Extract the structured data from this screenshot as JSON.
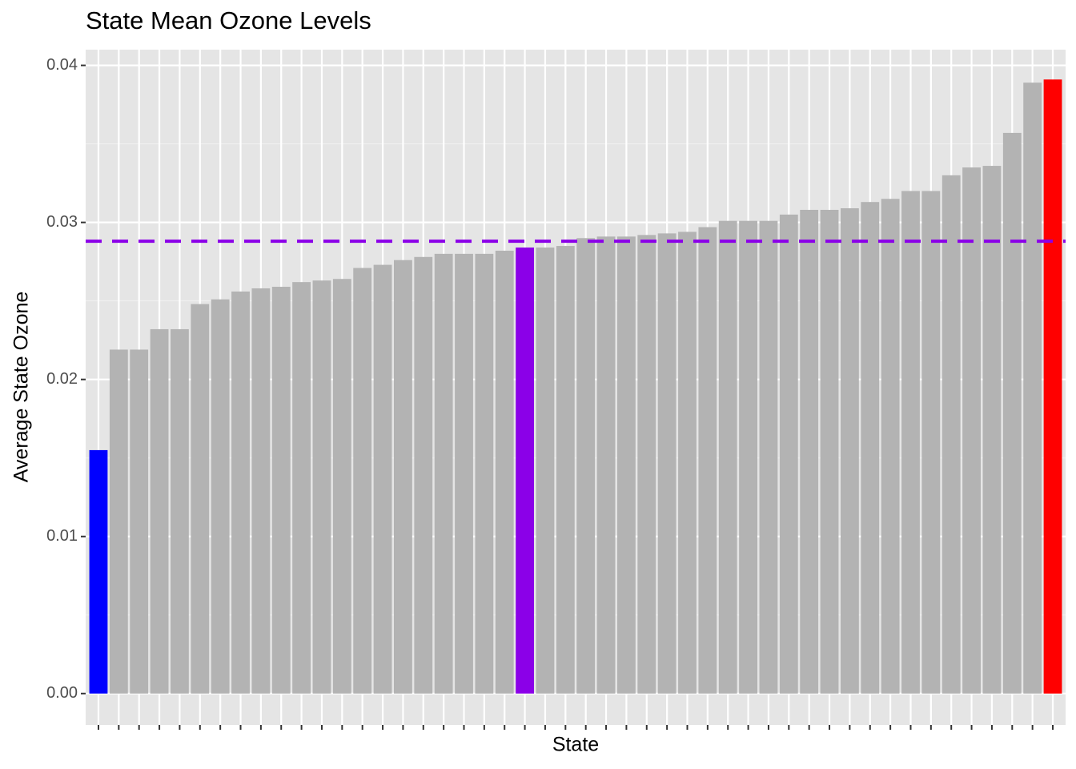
{
  "chart_data": {
    "type": "bar",
    "title": "State Mean Ozone Levels",
    "x_label": "State",
    "y_label": "Average State Ozone",
    "categories": [
      null,
      null,
      null,
      null,
      null,
      null,
      null,
      null,
      null,
      null,
      null,
      null,
      null,
      null,
      null,
      null,
      null,
      null,
      null,
      null,
      null,
      null,
      null,
      null,
      null,
      null,
      null,
      null,
      null,
      null,
      null,
      null,
      null,
      null,
      null,
      null,
      null,
      null,
      null,
      null,
      null,
      null,
      null,
      null,
      null,
      null,
      null,
      null
    ],
    "values": [
      0.0155,
      0.0219,
      0.0219,
      0.0232,
      0.0232,
      0.0248,
      0.0251,
      0.0256,
      0.0258,
      0.0259,
      0.0262,
      0.0263,
      0.0264,
      0.0271,
      0.0273,
      0.0276,
      0.0278,
      0.028,
      0.028,
      0.028,
      0.0282,
      0.0284,
      0.0284,
      0.0285,
      0.029,
      0.0291,
      0.0291,
      0.0292,
      0.0293,
      0.0294,
      0.0297,
      0.0301,
      0.0301,
      0.0301,
      0.0305,
      0.0308,
      0.0308,
      0.0309,
      0.0313,
      0.0315,
      0.032,
      0.032,
      0.033,
      0.0335,
      0.0336,
      0.0357,
      0.0389,
      0.0391
    ],
    "colors": [
      "#0000ff",
      "#b3b3b3",
      "#b3b3b3",
      "#b3b3b3",
      "#b3b3b3",
      "#b3b3b3",
      "#b3b3b3",
      "#b3b3b3",
      "#b3b3b3",
      "#b3b3b3",
      "#b3b3b3",
      "#b3b3b3",
      "#b3b3b3",
      "#b3b3b3",
      "#b3b3b3",
      "#b3b3b3",
      "#b3b3b3",
      "#b3b3b3",
      "#b3b3b3",
      "#b3b3b3",
      "#b3b3b3",
      "#8b00e8",
      "#b3b3b3",
      "#b3b3b3",
      "#b3b3b3",
      "#b3b3b3",
      "#b3b3b3",
      "#b3b3b3",
      "#b3b3b3",
      "#b3b3b3",
      "#b3b3b3",
      "#b3b3b3",
      "#b3b3b3",
      "#b3b3b3",
      "#b3b3b3",
      "#b3b3b3",
      "#b3b3b3",
      "#b3b3b3",
      "#b3b3b3",
      "#b3b3b3",
      "#b3b3b3",
      "#b3b3b3",
      "#b3b3b3",
      "#b3b3b3",
      "#b3b3b3",
      "#b3b3b3",
      "#b3b3b3",
      "#ff0000"
    ],
    "hline": {
      "value": 0.0288,
      "color": "#8b00e8"
    },
    "ylim": [
      -0.002,
      0.041
    ],
    "yticks": [
      {
        "value": 0,
        "label": "0.00"
      },
      0.01,
      0.02,
      0.03,
      0.04
    ],
    "grid": true
  }
}
